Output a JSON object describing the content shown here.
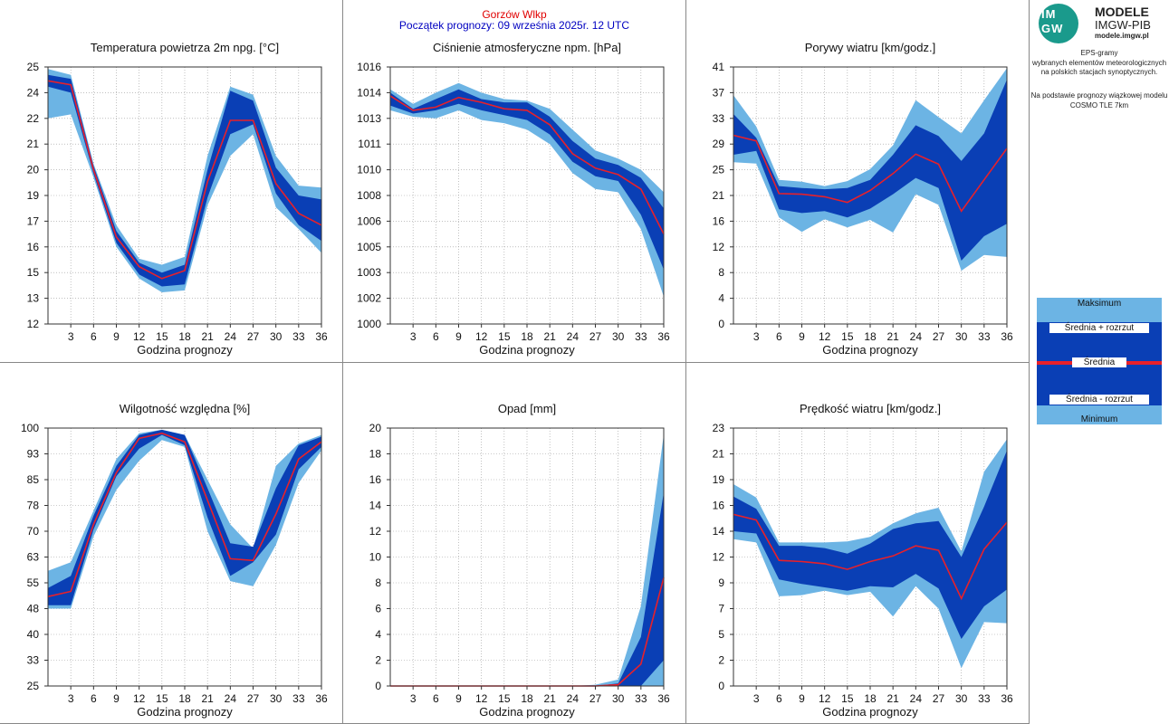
{
  "header": {
    "station": "Gorzów Wlkp",
    "forecast_start": "Początek prognozy: 09 września 2025r. 12 UTC"
  },
  "sidebar": {
    "logo_text": "IM\nGW",
    "logo_line1": "MODELE",
    "logo_line2": "IMGW-PIB",
    "logo_line3": "modele.imgw.pl",
    "description": [
      "EPS-gramy",
      "wybranych elementów meteorologicznych",
      "na polskich stacjach  synoptycznych."
    ],
    "description2": [
      "Na podstawie prognozy wiązkowej modelu",
      "COSMO TLE 7km"
    ],
    "legend": {
      "max": "Maksimum",
      "mean_plus": "Średnia + rozrzut",
      "mean": "Średnia",
      "mean_minus": "Średnia - rozrzut",
      "min": "Minimum"
    }
  },
  "colors": {
    "light_band": "#6cb4e4",
    "dark_band": "#0a3fb5",
    "mean_line": "#e8202a",
    "station": "#e00000",
    "start": "#0000c0"
  },
  "chart_data": [
    {
      "id": "temp",
      "type": "area",
      "title": "Temperatura powietrza 2m npg. [°C]",
      "xlabel": "Godzina prognozy",
      "ylim": [
        12,
        25
      ],
      "yticks": [
        "25",
        "24",
        "22",
        "21",
        "20",
        "19",
        "17",
        "16",
        "15",
        "13",
        "12"
      ],
      "xticks": [
        "3",
        "6",
        "9",
        "12",
        "15",
        "18",
        "21",
        "24",
        "27",
        "30",
        "33",
        "36"
      ],
      "x": [
        0,
        3,
        6,
        9,
        12,
        15,
        18,
        21,
        24,
        27,
        30,
        33,
        36
      ],
      "max": [
        24.9,
        24.6,
        20.1,
        17.0,
        15.3,
        15.0,
        15.4,
        20.5,
        24.0,
        23.6,
        20.5,
        19.0,
        18.9
      ],
      "upper": [
        24.6,
        24.4,
        20.0,
        16.7,
        15.1,
        14.6,
        15.0,
        19.8,
        23.8,
        23.3,
        19.9,
        18.5,
        18.3
      ],
      "mean": [
        24.3,
        24.1,
        19.8,
        16.4,
        14.9,
        14.3,
        14.7,
        19.2,
        22.3,
        22.3,
        19.1,
        17.6,
        17.0
      ],
      "lower": [
        24.0,
        23.7,
        19.6,
        16.1,
        14.5,
        13.9,
        14.0,
        18.4,
        21.6,
        22.1,
        18.6,
        17.0,
        16.2
      ],
      "min": [
        22.4,
        22.6,
        19.4,
        15.9,
        14.3,
        13.6,
        13.7,
        18.0,
        20.5,
        21.6,
        17.9,
        16.8,
        15.6
      ]
    },
    {
      "id": "pressure",
      "type": "area",
      "title": "Ciśnienie atmosferyczne npm. [hPa]",
      "xlabel": "Godzina prognozy",
      "ylim": [
        1000,
        1016
      ],
      "yticks": [
        "1016",
        "1014",
        "1013",
        "1011",
        "1010",
        "1008",
        "1006",
        "1005",
        "1003",
        "1002",
        "1000"
      ],
      "xticks": [
        "3",
        "6",
        "9",
        "12",
        "15",
        "18",
        "21",
        "24",
        "27",
        "30",
        "33",
        "36"
      ],
      "x": [
        0,
        3,
        6,
        9,
        12,
        15,
        18,
        21,
        24,
        27,
        30,
        33,
        36
      ],
      "max": [
        1014.6,
        1013.7,
        1014.4,
        1015.0,
        1014.4,
        1014.0,
        1013.9,
        1013.4,
        1012.1,
        1010.8,
        1010.3,
        1009.6,
        1008.2
      ],
      "upper": [
        1014.4,
        1013.4,
        1014.0,
        1014.6,
        1014.0,
        1013.8,
        1013.8,
        1012.9,
        1011.4,
        1010.3,
        1009.9,
        1009.1,
        1007.2
      ],
      "mean": [
        1014.2,
        1013.3,
        1013.5,
        1014.1,
        1013.8,
        1013.4,
        1013.3,
        1012.4,
        1010.6,
        1009.7,
        1009.3,
        1008.4,
        1005.6
      ],
      "lower": [
        1013.6,
        1013.1,
        1013.3,
        1013.7,
        1013.3,
        1013.0,
        1012.7,
        1011.8,
        1010.1,
        1009.2,
        1008.9,
        1006.8,
        1003.4
      ],
      "min": [
        1013.3,
        1012.9,
        1012.8,
        1013.3,
        1012.7,
        1012.5,
        1012.1,
        1011.2,
        1009.4,
        1008.4,
        1008.2,
        1005.9,
        1001.7
      ]
    },
    {
      "id": "gusts",
      "type": "area",
      "title": "Porywy wiatru [km/godz.]",
      "xlabel": "Godzina prognozy",
      "ylim": [
        0,
        41
      ],
      "yticks": [
        "41",
        "37",
        "33",
        "29",
        "25",
        "21",
        "16",
        "12",
        "8",
        "4",
        "0"
      ],
      "xticks": [
        "3",
        "6",
        "9",
        "12",
        "15",
        "18",
        "21",
        "24",
        "27",
        "30",
        "33",
        "36"
      ],
      "x": [
        0,
        3,
        6,
        9,
        12,
        15,
        18,
        21,
        24,
        27,
        30,
        33,
        36
      ],
      "max": [
        36.5,
        31.5,
        23.0,
        22.7,
        22.0,
        22.8,
        24.7,
        28.5,
        35.7,
        33.0,
        30.4,
        35.7,
        40.8
      ],
      "upper": [
        33.5,
        29.7,
        22.0,
        21.7,
        21.5,
        21.7,
        23.0,
        27.0,
        31.7,
        30.0,
        26.0,
        30.4,
        39.0
      ],
      "mean": [
        30.1,
        29.2,
        20.8,
        20.7,
        20.3,
        19.4,
        21.3,
        24.0,
        27.1,
        25.5,
        18.0,
        23.0,
        28.0
      ],
      "lower": [
        27.0,
        27.6,
        18.3,
        17.7,
        18.0,
        17.0,
        18.4,
        20.7,
        23.3,
        21.7,
        10.1,
        14.0,
        16.0
      ],
      "min": [
        25.8,
        25.6,
        17.0,
        14.7,
        16.7,
        15.4,
        16.6,
        14.6,
        20.7,
        19.0,
        8.5,
        11.0,
        10.7
      ]
    },
    {
      "id": "humidity",
      "type": "area",
      "title": "Wilgotność względna [%]",
      "xlabel": "Godzina prognozy",
      "ylim": [
        25,
        100
      ],
      "yticks": [
        "100",
        "93",
        "85",
        "78",
        "70",
        "63",
        "55",
        "48",
        "40",
        "33",
        "25"
      ],
      "xticks": [
        "3",
        "6",
        "9",
        "12",
        "15",
        "18",
        "21",
        "24",
        "27",
        "30",
        "33",
        "36"
      ],
      "x": [
        0,
        3,
        6,
        9,
        12,
        15,
        18,
        21,
        24,
        27,
        30,
        33,
        36
      ],
      "max": [
        58.5,
        61.0,
        76.0,
        91.0,
        98.5,
        99.5,
        98.0,
        85.0,
        72.0,
        65.0,
        89.0,
        95.5,
        98.0
      ],
      "upper": [
        53.5,
        57.0,
        74.5,
        89.0,
        98.0,
        99.5,
        98.0,
        82.5,
        66.5,
        65.5,
        82.5,
        95.0,
        97.5
      ],
      "mean": [
        51.0,
        52.5,
        72.0,
        87.0,
        97.0,
        98.5,
        96.0,
        79.0,
        62.0,
        61.5,
        75.0,
        91.0,
        96.0
      ],
      "lower": [
        48.5,
        48.5,
        70.5,
        86.0,
        94.0,
        98.0,
        95.0,
        74.0,
        57.0,
        61.0,
        69.0,
        88.0,
        94.5
      ],
      "min": [
        47.5,
        47.5,
        68.5,
        82.0,
        90.5,
        96.5,
        94.5,
        70.0,
        55.5,
        54.0,
        66.0,
        84.0,
        93.5
      ]
    },
    {
      "id": "precip",
      "type": "area",
      "title": "Opad [mm]",
      "xlabel": "Godzina prognozy",
      "ylim": [
        0,
        20
      ],
      "yticks": [
        "20",
        "18",
        "16",
        "14",
        "12",
        "10",
        "8",
        "6",
        "4",
        "2",
        "0"
      ],
      "xticks": [
        "3",
        "6",
        "9",
        "12",
        "15",
        "18",
        "21",
        "24",
        "27",
        "30",
        "33",
        "36"
      ],
      "x": [
        0,
        3,
        6,
        9,
        12,
        15,
        18,
        21,
        24,
        27,
        30,
        33,
        36
      ],
      "max": [
        0,
        0,
        0,
        0,
        0,
        0,
        0,
        0,
        0,
        0.1,
        0.5,
        6.2,
        19.5
      ],
      "upper": [
        0,
        0,
        0,
        0,
        0,
        0,
        0,
        0,
        0,
        0,
        0.2,
        3.8,
        15.0
      ],
      "mean": [
        0,
        0,
        0,
        0,
        0,
        0,
        0,
        0,
        0,
        0,
        0.1,
        1.7,
        8.4
      ],
      "lower": [
        0,
        0,
        0,
        0,
        0,
        0,
        0,
        0,
        0,
        0,
        0,
        0,
        2.0
      ],
      "min": [
        0,
        0,
        0,
        0,
        0,
        0,
        0,
        0,
        0,
        0,
        0,
        0,
        0
      ]
    },
    {
      "id": "wind",
      "type": "area",
      "title": "Prędkość wiatru [km/godz.]",
      "xlabel": "Godzina prognozy",
      "ylim": [
        0,
        23
      ],
      "yticks": [
        "23",
        "21",
        "19",
        "16",
        "14",
        "12",
        "9",
        "7",
        "5",
        "2",
        "0"
      ],
      "xticks": [
        "3",
        "6",
        "9",
        "12",
        "15",
        "18",
        "21",
        "24",
        "27",
        "30",
        "33",
        "36"
      ],
      "x": [
        0,
        3,
        6,
        9,
        12,
        15,
        18,
        21,
        24,
        27,
        30,
        33,
        36
      ],
      "max": [
        18.0,
        16.8,
        12.8,
        12.8,
        12.8,
        12.9,
        13.3,
        14.5,
        15.4,
        15.9,
        12.0,
        19.1,
        22.0
      ],
      "upper": [
        16.9,
        15.8,
        12.5,
        12.5,
        12.3,
        11.8,
        12.7,
        14.0,
        14.5,
        14.7,
        11.5,
        16.0,
        21.0
      ],
      "mean": [
        15.3,
        14.8,
        11.2,
        11.1,
        10.9,
        10.4,
        11.1,
        11.6,
        12.5,
        12.1,
        7.8,
        12.2,
        14.6
      ],
      "lower": [
        13.8,
        13.6,
        9.5,
        9.1,
        8.8,
        8.5,
        8.9,
        8.8,
        10.0,
        8.7,
        4.2,
        7.1,
        8.6
      ],
      "min": [
        13.1,
        12.8,
        8.0,
        8.1,
        8.5,
        8.1,
        8.4,
        6.2,
        8.9,
        6.9,
        1.6,
        5.7,
        5.6
      ]
    }
  ]
}
